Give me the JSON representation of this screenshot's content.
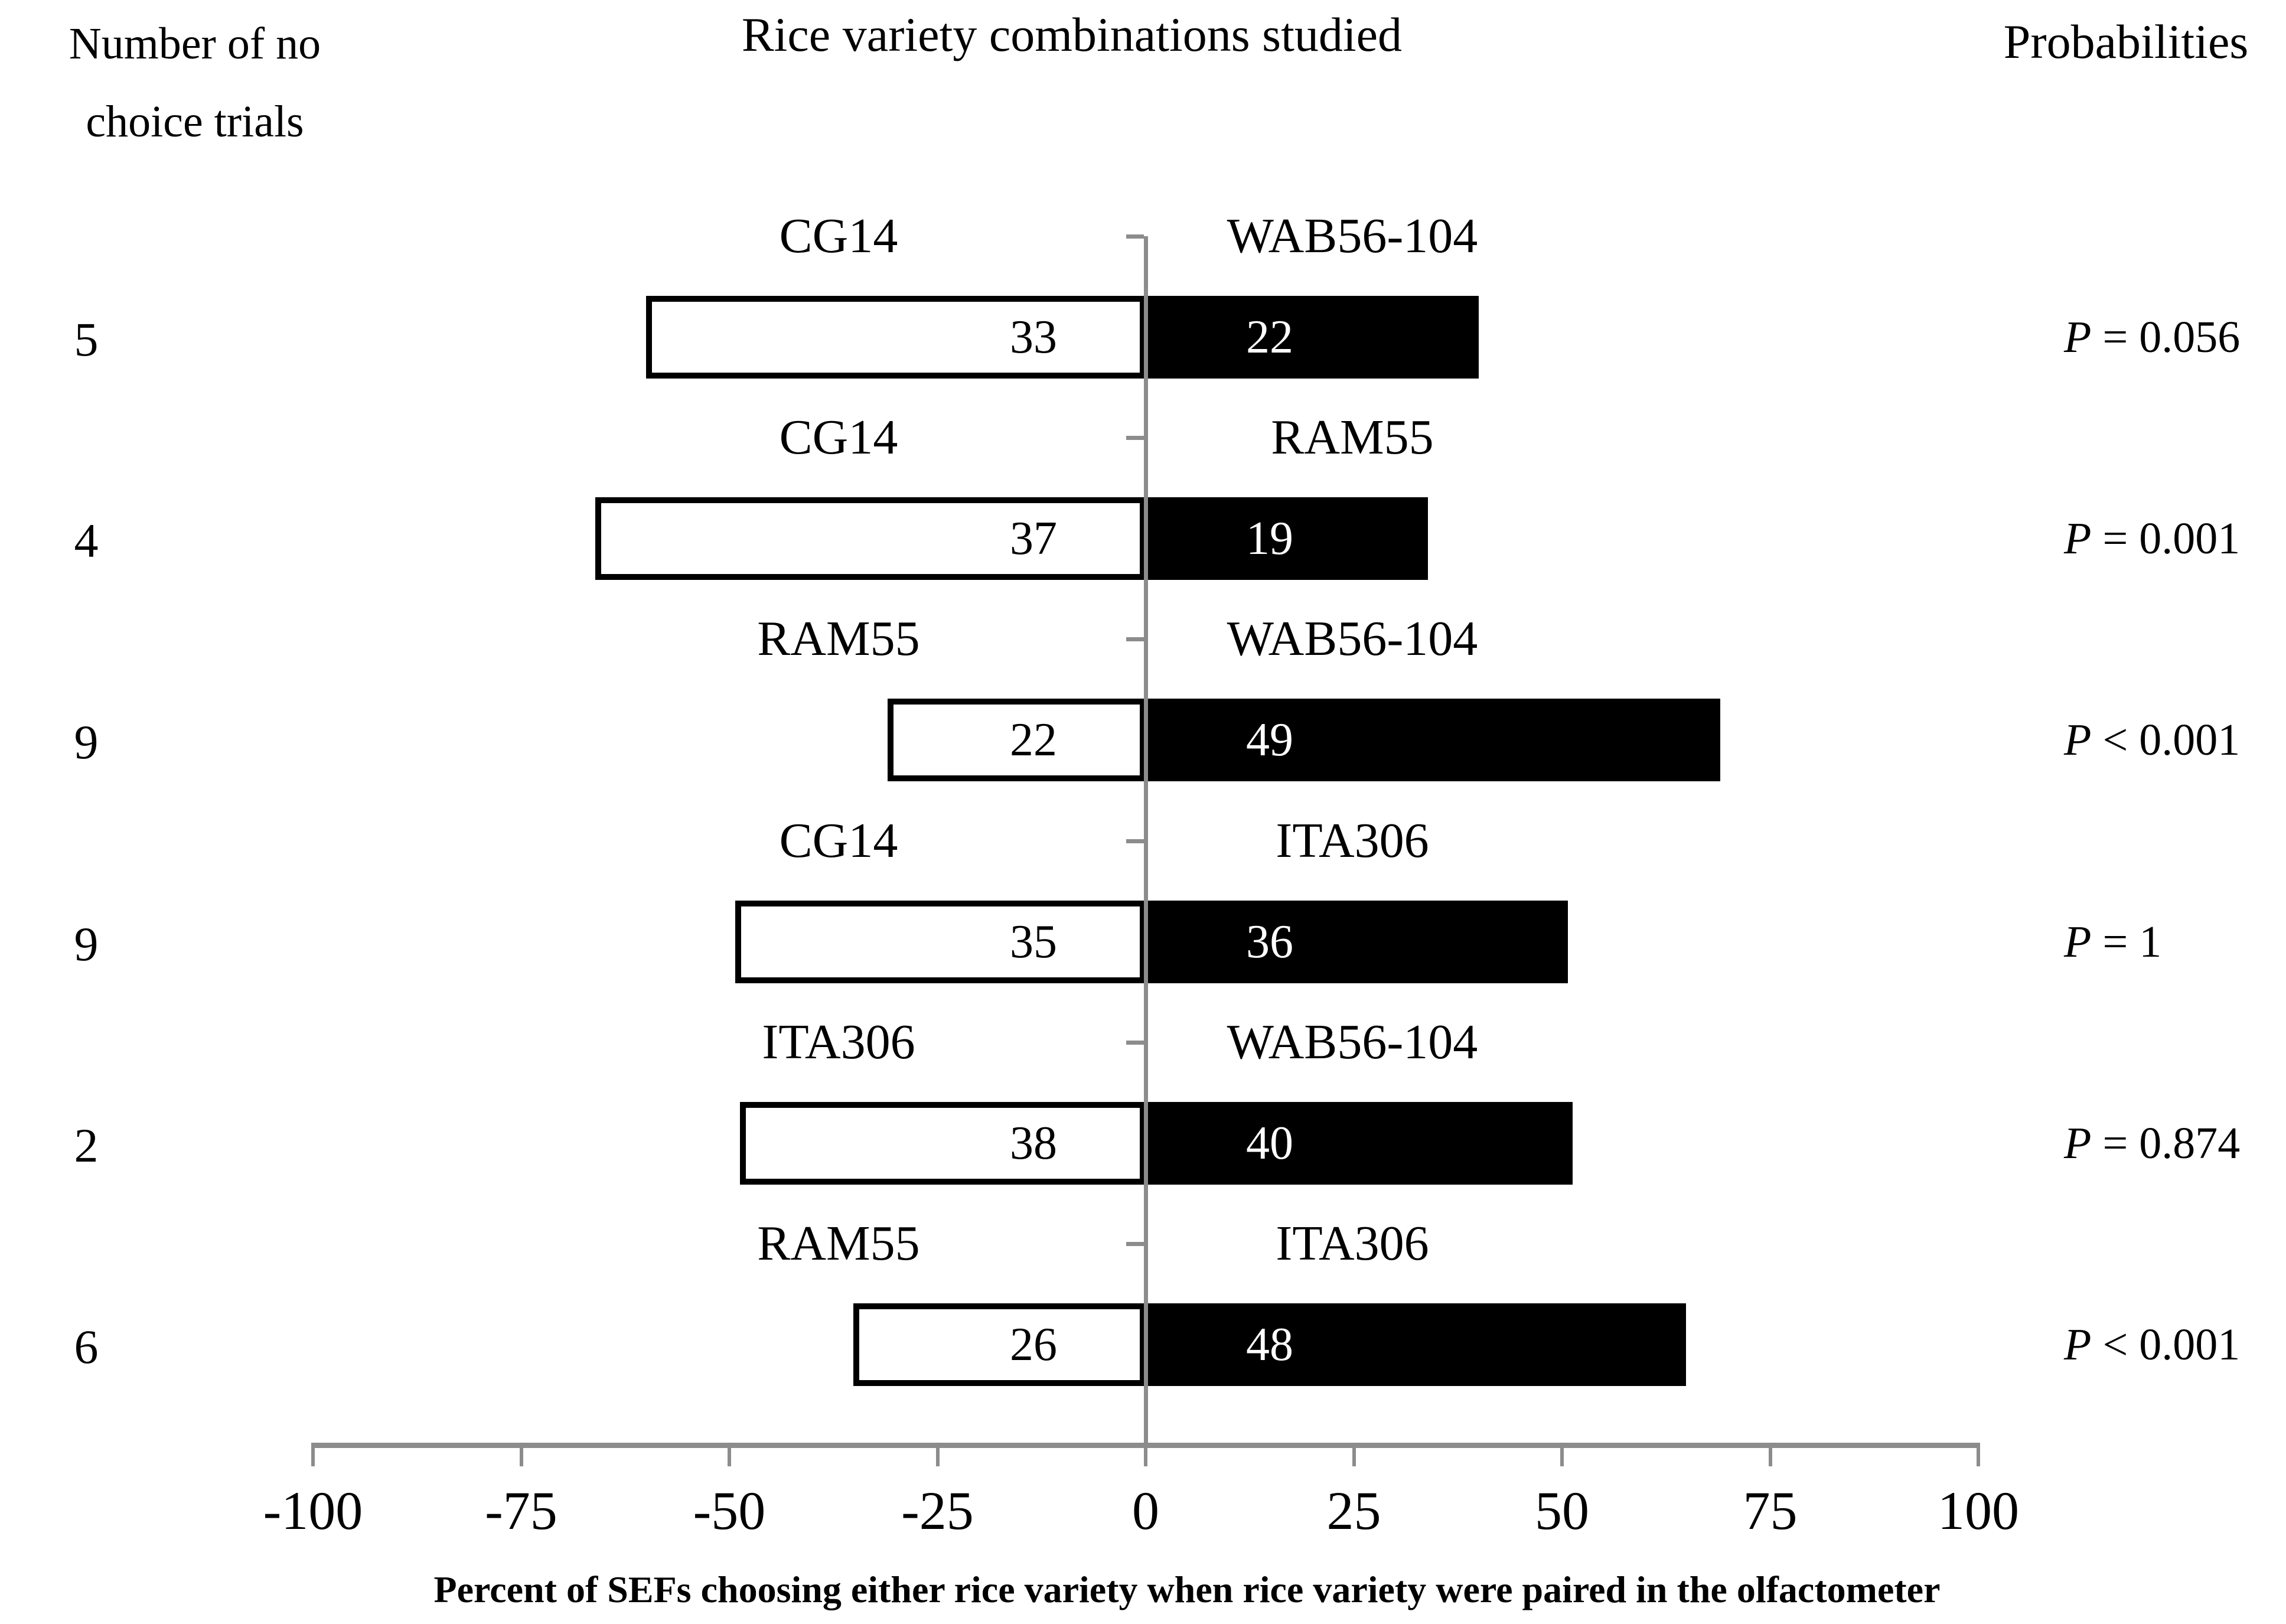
{
  "colors": {
    "background": "#ffffff",
    "text": "#000000",
    "axis_line_grey": "#8c8c8c",
    "left_bar_fill": "#ffffff",
    "left_bar_border": "#000000",
    "right_bar_fill": "#000000",
    "right_bar_value_text": "#ffffff"
  },
  "chart_data": {
    "type": "bar",
    "variant": "diverging-horizontal-paired",
    "title": "Rice variety combinations studied",
    "left_axis_title": [
      "Number of no",
      "choice trials"
    ],
    "right_axis_title": "Probabilities",
    "xlabel": "Percent of SEFs choosing either rice variety when rice variety were paired in the olfactometer",
    "xlim": [
      -100,
      100
    ],
    "x_ticks": [
      -100,
      -75,
      -50,
      -25,
      0,
      25,
      50,
      75,
      100
    ],
    "grid": false,
    "legend": "none",
    "rows": [
      {
        "trials": "5",
        "left": {
          "variety": "CG14",
          "count": "33",
          "pct": 60.0
        },
        "right": {
          "variety": "WAB56-104",
          "count": "22",
          "pct": 40.0
        },
        "p": {
          "symbol": "P",
          "rest": " = 0.056"
        }
      },
      {
        "trials": "4",
        "left": {
          "variety": "CG14",
          "count": "37",
          "pct": 66.1
        },
        "right": {
          "variety": "RAM55",
          "count": "19",
          "pct": 33.9
        },
        "p": {
          "symbol": "P",
          "rest": " = 0.001"
        }
      },
      {
        "trials": "9",
        "left": {
          "variety": "RAM55",
          "count": "22",
          "pct": 31.0
        },
        "right": {
          "variety": "WAB56-104",
          "count": "49",
          "pct": 69.0
        },
        "p": {
          "symbol": "P",
          "rest": " < 0.001"
        }
      },
      {
        "trials": "9",
        "left": {
          "variety": "CG14",
          "count": "35",
          "pct": 49.3
        },
        "right": {
          "variety": "ITA306",
          "count": "36",
          "pct": 50.7
        },
        "p": {
          "symbol": "P",
          "rest": " = 1"
        }
      },
      {
        "trials": "2",
        "left": {
          "variety": "ITA306",
          "count": "38",
          "pct": 48.7
        },
        "right": {
          "variety": "WAB56-104",
          "count": "40",
          "pct": 51.3
        },
        "p": {
          "symbol": "P",
          "rest": " = 0.874"
        }
      },
      {
        "trials": "6",
        "left": {
          "variety": "RAM55",
          "count": "26",
          "pct": 35.1
        },
        "right": {
          "variety": "ITA306",
          "count": "48",
          "pct": 64.9
        },
        "p": {
          "symbol": "P",
          "rest": " < 0.001"
        }
      }
    ]
  }
}
